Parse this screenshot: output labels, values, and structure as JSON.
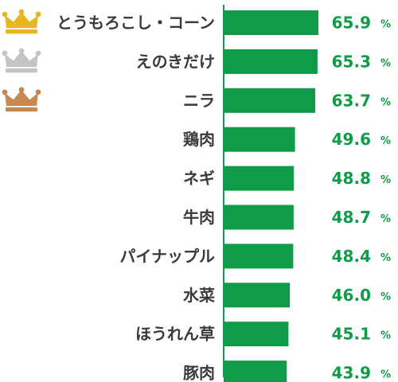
{
  "chart_data": {
    "type": "bar",
    "orientation": "horizontal",
    "categories": [
      "とうもろこし・コーン",
      "えのきだけ",
      "ニラ",
      "鶏肉",
      "ネギ",
      "牛肉",
      "パイナップル",
      "水菜",
      "ほうれん草",
      "豚肉"
    ],
    "values": [
      65.9,
      65.3,
      63.7,
      49.6,
      48.8,
      48.7,
      48.4,
      46.0,
      45.1,
      43.9
    ],
    "value_labels": [
      "65.9",
      "65.3",
      "63.7",
      "49.6",
      "48.8",
      "48.7",
      "48.4",
      "46.0",
      "45.1",
      "43.9"
    ],
    "unit": "%",
    "title": "",
    "xlabel": "",
    "ylabel": "",
    "grid": false,
    "legend": "none",
    "ranking_icons": [
      {
        "rank": 1,
        "icon": "gold-crown-icon",
        "color": "#E6B71E"
      },
      {
        "rank": 2,
        "icon": "silver-crown-icon",
        "color": "#C4C4C4"
      },
      {
        "rank": 3,
        "icon": "bronze-crown-icon",
        "color": "#C48A52"
      }
    ]
  },
  "colors": {
    "bar": "#109B48",
    "value_text": "#109B48",
    "axis": "#109B48",
    "label_text": "#3A3A3A"
  }
}
